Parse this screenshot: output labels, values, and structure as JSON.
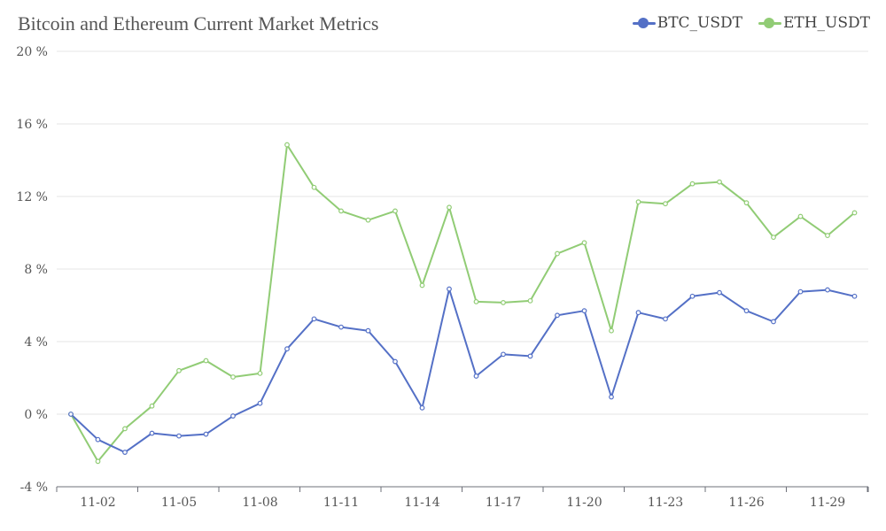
{
  "chart_data": {
    "type": "line",
    "title": "Bitcoin and Ethereum Current Market Metrics",
    "x": [
      "11-01",
      "11-02",
      "11-03",
      "11-04",
      "11-05",
      "11-06",
      "11-07",
      "11-08",
      "11-09",
      "11-10",
      "11-11",
      "11-12",
      "11-13",
      "11-14",
      "11-15",
      "11-16",
      "11-17",
      "11-18",
      "11-19",
      "11-20",
      "11-21",
      "11-22",
      "11-23",
      "11-24",
      "11-25",
      "11-26",
      "11-27",
      "11-28",
      "11-29",
      "11-30"
    ],
    "x_tick_labels": [
      "11-02",
      "11-05",
      "11-08",
      "11-11",
      "11-14",
      "11-17",
      "11-20",
      "11-23",
      "11-26",
      "11-29"
    ],
    "y_tick_labels": [
      "20 %",
      "16 %",
      "12 %",
      "8 %",
      "4 %",
      "0 %",
      "-4 %"
    ],
    "ylim": [
      -4,
      20
    ],
    "y_ticks": [
      20,
      16,
      12,
      8,
      4,
      0,
      -4
    ],
    "grid": true,
    "legend": "top-right",
    "series": [
      {
        "name": "BTC_USDT",
        "color": "#5470c6",
        "values": [
          0.0,
          -1.4,
          -2.1,
          -1.05,
          -1.2,
          -1.1,
          -0.1,
          0.6,
          3.6,
          5.25,
          4.8,
          4.6,
          2.9,
          0.35,
          6.9,
          2.1,
          3.3,
          3.2,
          5.45,
          5.7,
          0.95,
          5.6,
          5.25,
          6.5,
          6.7,
          5.7,
          5.1,
          6.75,
          6.85,
          6.5
        ]
      },
      {
        "name": "ETH_USDT",
        "color": "#91cc75",
        "values": [
          0.0,
          -2.6,
          -0.8,
          0.45,
          2.4,
          2.95,
          2.05,
          2.25,
          14.85,
          12.5,
          11.2,
          10.7,
          11.2,
          7.1,
          11.4,
          6.2,
          6.15,
          6.25,
          8.85,
          9.45,
          4.6,
          11.7,
          11.6,
          12.7,
          12.8,
          11.65,
          9.75,
          10.9,
          9.85,
          11.1
        ]
      }
    ]
  }
}
